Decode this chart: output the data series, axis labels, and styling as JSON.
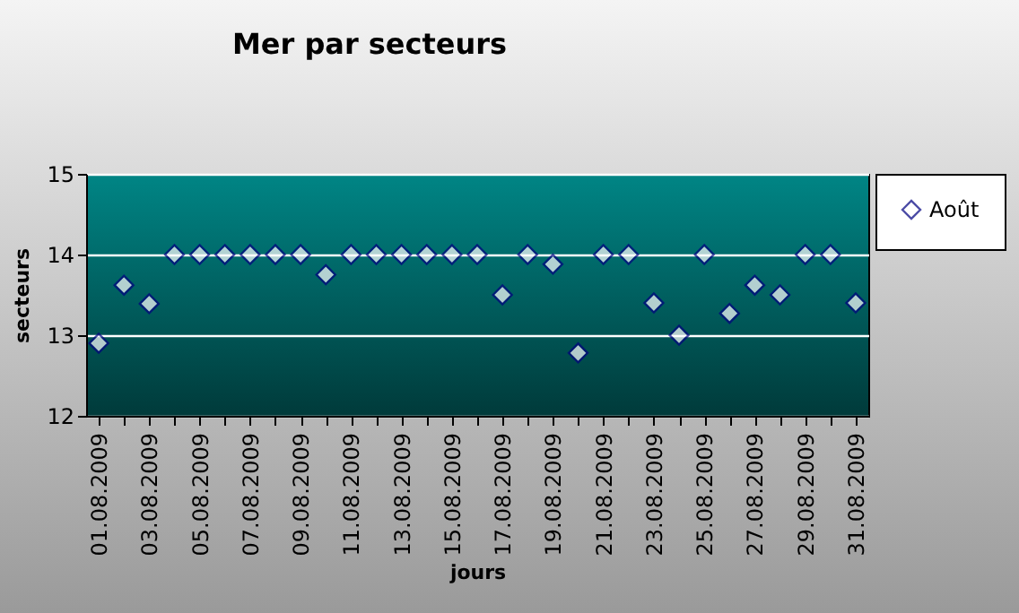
{
  "chart_data": {
    "type": "scatter",
    "title": "Mer par secteurs",
    "xlabel": "jours",
    "ylabel": "secteurs",
    "categories": [
      "01.08.2009",
      null,
      "03.08.2009",
      null,
      "05.08.2009",
      null,
      "07.08.2009",
      null,
      "09.08.2009",
      null,
      "11.08.2009",
      null,
      "13.08.2009",
      null,
      "15.08.2009",
      null,
      "17.08.2009",
      null,
      "19.08.2009",
      null,
      "21.08.2009",
      null,
      "23.08.2009",
      null,
      "25.08.2009",
      null,
      "27.08.2009",
      null,
      "29.08.2009",
      null,
      "31.08.2009"
    ],
    "series": [
      {
        "name": "Août",
        "color": "#000080",
        "values": [
          12.9,
          13.62,
          13.39,
          14,
          14,
          14,
          14,
          14,
          14,
          13.75,
          14,
          14,
          14,
          14,
          14,
          14,
          13.5,
          14,
          13.88,
          12.78,
          14,
          14,
          13.4,
          13.0,
          14,
          13.27,
          13.62,
          13.5,
          14,
          14,
          13.4
        ]
      }
    ],
    "ylim": [
      12,
      15
    ],
    "yticks": [
      12,
      13,
      14,
      15
    ],
    "grid": "y",
    "legend": "right",
    "marker": "diamond"
  }
}
